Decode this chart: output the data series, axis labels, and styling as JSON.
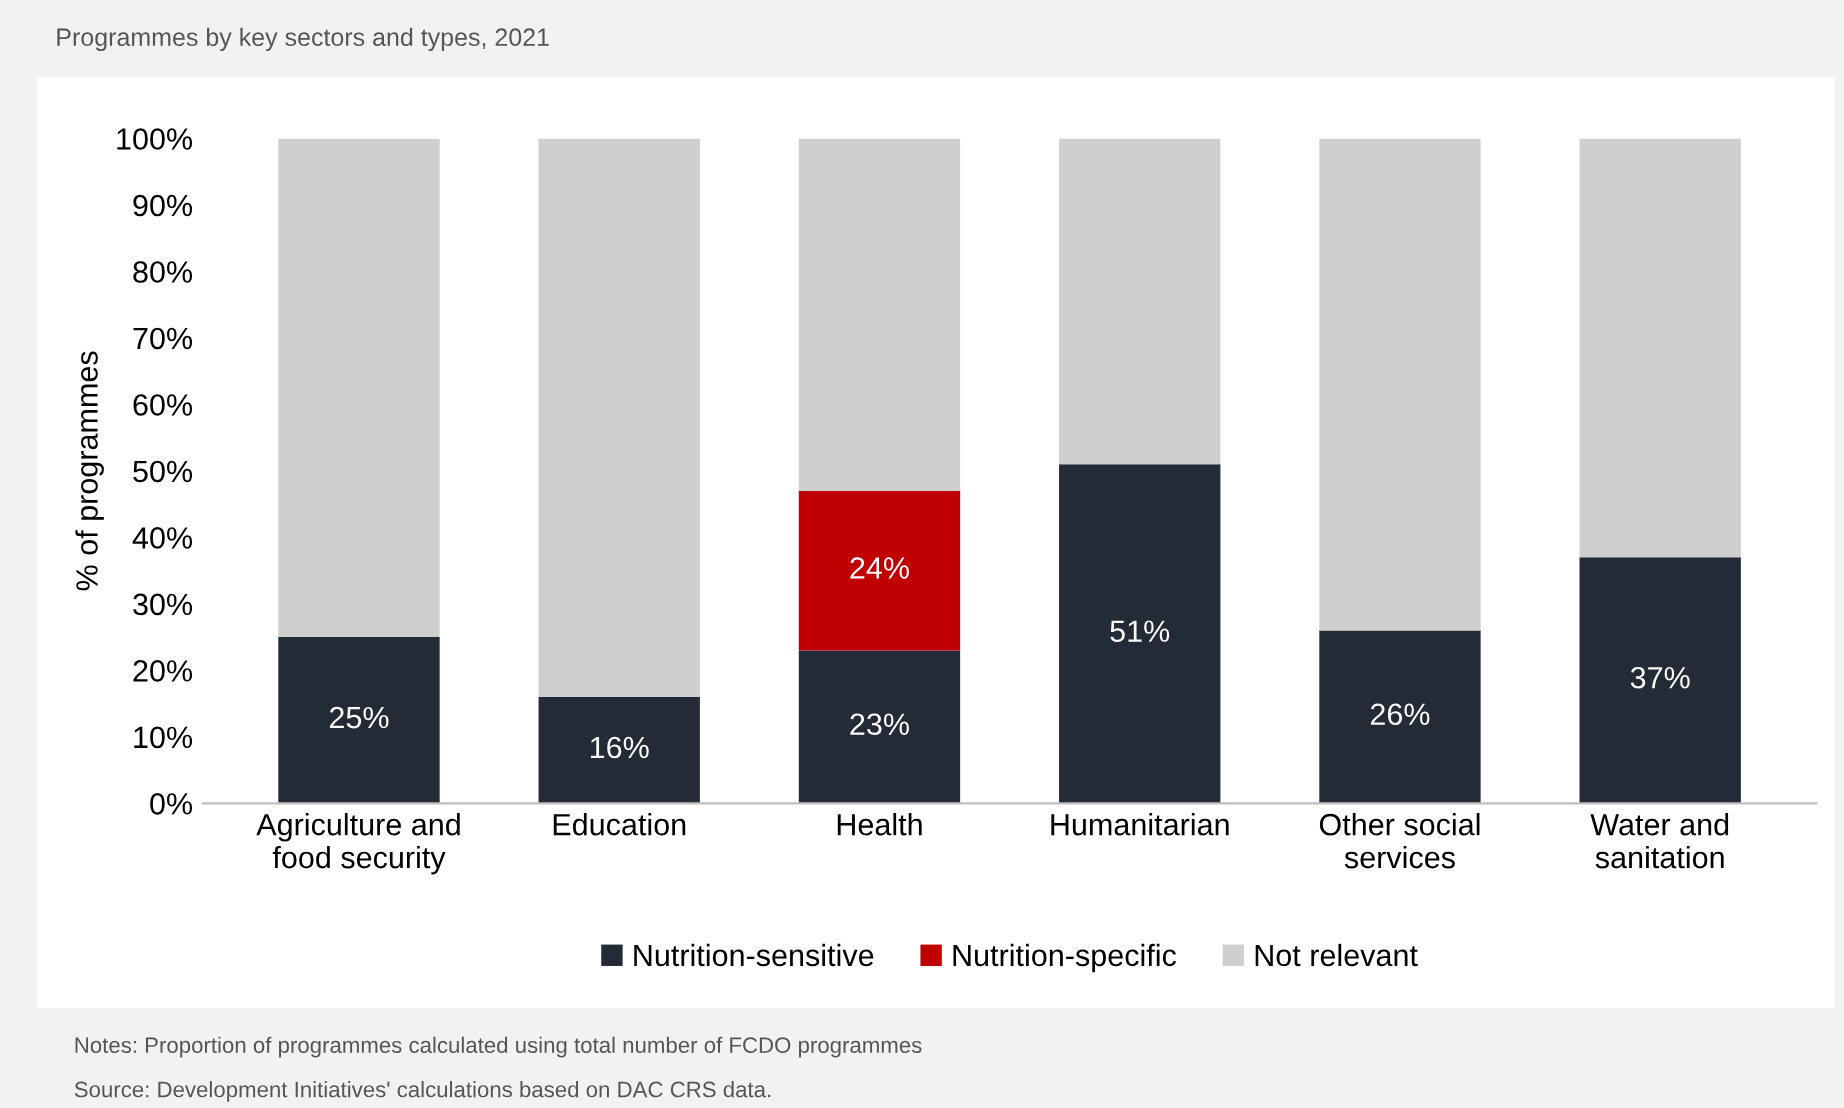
{
  "chart_data": {
    "type": "bar",
    "stacked": true,
    "title": "Programmes by key sectors and types, 2021",
    "ylabel": "% of programmes",
    "categories": [
      "Agriculture and\nfood security",
      "Education",
      "Health",
      "Humanitarian",
      "Other social\nservices",
      "Water and\nsanitation"
    ],
    "series": [
      {
        "name": "Nutrition-sensitive",
        "color": "#222b36",
        "values": [
          25,
          16,
          23,
          51,
          26,
          37
        ],
        "value_labels": [
          "25%",
          "16%",
          "23%",
          "51%",
          "26%",
          "37%"
        ]
      },
      {
        "name": "Nutrition-specific",
        "color": "#c00000",
        "values": [
          0,
          0,
          24,
          0,
          0,
          0
        ],
        "value_labels": [
          null,
          null,
          "24%",
          null,
          null,
          null
        ]
      },
      {
        "name": "Not relevant",
        "color": "#d0cfcf",
        "values": [
          75,
          84,
          53,
          49,
          74,
          63
        ]
      }
    ],
    "ylim": [
      0,
      100
    ],
    "yticks": [
      {
        "value": 0,
        "label": "0%"
      },
      {
        "value": 10,
        "label": "10%"
      },
      {
        "value": 20,
        "label": "20%"
      },
      {
        "value": 30,
        "label": "30%"
      },
      {
        "value": 40,
        "label": "40%"
      },
      {
        "value": 50,
        "label": "50%"
      },
      {
        "value": 60,
        "label": "60%"
      },
      {
        "value": 70,
        "label": "70%"
      },
      {
        "value": 80,
        "label": "80%"
      },
      {
        "value": 90,
        "label": "90%"
      },
      {
        "value": 100,
        "label": "100%"
      }
    ],
    "legend": "bottom",
    "grid": false,
    "annotations": [
      "Notes: Proportion of programmes calculated using total number of FCDO programmes",
      "Source: Development Initiatives' calculations based on DAC CRS data."
    ]
  }
}
